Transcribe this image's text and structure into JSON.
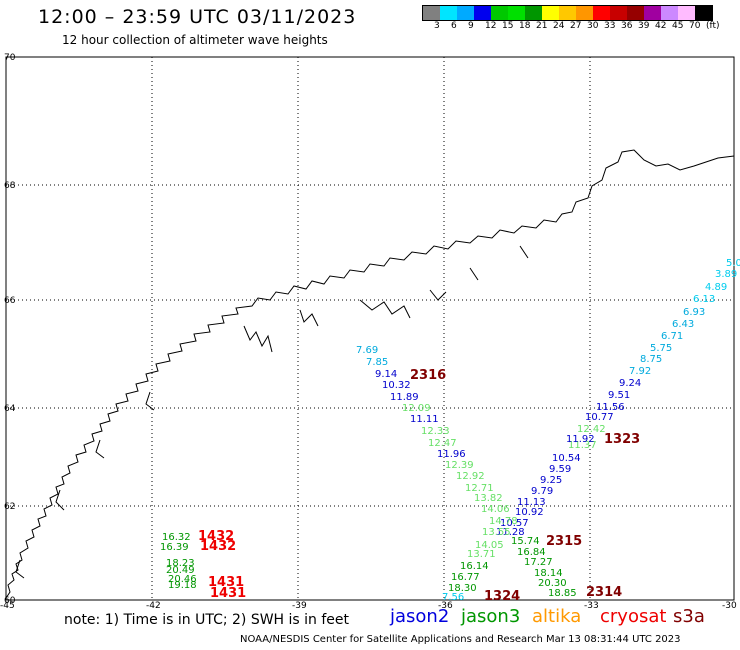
{
  "header": {
    "title": "12:00 – 23:59 UTC 03/11/2023",
    "subtitle": "12 hour collection of altimeter wave heights"
  },
  "colorbar": {
    "labels": [
      "3",
      "6",
      "9",
      "12",
      "15",
      "18",
      "21",
      "24",
      "27",
      "30",
      "33",
      "36",
      "39",
      "42",
      "45",
      "70",
      "(ft)"
    ],
    "colors": [
      "#808080",
      "#00e5ff",
      "#00aaff",
      "#0000ee",
      "#00c800",
      "#00e000",
      "#009600",
      "#ffff00",
      "#ffc800",
      "#ff9600",
      "#ff0000",
      "#c80000",
      "#960000",
      "#a000a0",
      "#cc88ff",
      "#ffbbff",
      "#000000"
    ]
  },
  "map": {
    "lon_ticks": [
      "-45",
      "-42",
      "-39",
      "-36",
      "-33",
      "-30"
    ],
    "lat_ticks": [
      "70",
      "68",
      "66",
      "64",
      "62",
      "60"
    ],
    "observations": [
      {
        "v": "5.0",
        "c": "#00ccee"
      },
      {
        "v": "3.89",
        "c": "#00ccee"
      },
      {
        "v": "4.89",
        "c": "#00ccee"
      },
      {
        "v": "6.13",
        "c": "#00ccee"
      },
      {
        "v": "6.93",
        "c": "#00aadd"
      },
      {
        "v": "6.43",
        "c": "#00aadd"
      },
      {
        "v": "6.71",
        "c": "#00aadd"
      },
      {
        "v": "5.75",
        "c": "#00aadd"
      },
      {
        "v": "8.75",
        "c": "#00aadd"
      },
      {
        "v": "7.92",
        "c": "#00aadd"
      },
      {
        "v": "9.24",
        "c": "#0000cc"
      },
      {
        "v": "9.51",
        "c": "#0000cc"
      },
      {
        "v": "11.56",
        "c": "#0000cc"
      },
      {
        "v": "10.77",
        "c": "#0000cc"
      },
      {
        "v": "12.42",
        "c": "#66e066"
      },
      {
        "v": "11.37",
        "c": "#66e066"
      },
      {
        "v": "11.92",
        "c": "#0000cc"
      },
      {
        "v": "10.54",
        "c": "#0000cc"
      },
      {
        "v": "9.59",
        "c": "#0000cc"
      },
      {
        "v": "9.25",
        "c": "#0000cc"
      },
      {
        "v": "9.79",
        "c": "#0000cc"
      },
      {
        "v": "11.13",
        "c": "#0000cc"
      },
      {
        "v": "10.92",
        "c": "#0000cc"
      },
      {
        "v": "10.57",
        "c": "#0000cc"
      },
      {
        "v": "11.28",
        "c": "#0000cc"
      },
      {
        "v": "15.74",
        "c": "#009600"
      },
      {
        "v": "16.84",
        "c": "#009600"
      },
      {
        "v": "17.27",
        "c": "#009600"
      },
      {
        "v": "18.14",
        "c": "#009600"
      },
      {
        "v": "20.30",
        "c": "#009600"
      },
      {
        "v": "18.85",
        "c": "#009600"
      },
      {
        "v": "7.69",
        "c": "#00aadd"
      },
      {
        "v": "7.85",
        "c": "#00aadd"
      },
      {
        "v": "9.14",
        "c": "#0000cc"
      },
      {
        "v": "10.32",
        "c": "#0000cc"
      },
      {
        "v": "11.89",
        "c": "#0000cc"
      },
      {
        "v": "12.09",
        "c": "#66e066"
      },
      {
        "v": "11.11",
        "c": "#0000cc"
      },
      {
        "v": "12.33",
        "c": "#66e066"
      },
      {
        "v": "12.47",
        "c": "#66e066"
      },
      {
        "v": "11.96",
        "c": "#0000cc"
      },
      {
        "v": "12.39",
        "c": "#66e066"
      },
      {
        "v": "12.92",
        "c": "#66e066"
      },
      {
        "v": "12.71",
        "c": "#66e066"
      },
      {
        "v": "13.82",
        "c": "#66e066"
      },
      {
        "v": "14.06",
        "c": "#66e066"
      },
      {
        "v": "14.78",
        "c": "#66e066"
      },
      {
        "v": "13.55",
        "c": "#66e066"
      },
      {
        "v": "14.05",
        "c": "#66e066"
      },
      {
        "v": "13.71",
        "c": "#66e066"
      },
      {
        "v": "16.14",
        "c": "#009600"
      },
      {
        "v": "16.77",
        "c": "#009600"
      },
      {
        "v": "18.30",
        "c": "#009600"
      },
      {
        "v": "7.56",
        "c": "#00ccee"
      },
      {
        "v": "16.32",
        "c": "#009600"
      },
      {
        "v": "16.39",
        "c": "#009600"
      },
      {
        "v": "18.23",
        "c": "#009600"
      },
      {
        "v": "20.49",
        "c": "#009600"
      },
      {
        "v": "20.46",
        "c": "#009600"
      },
      {
        "v": "19.18",
        "c": "#009600"
      }
    ],
    "pass_times": [
      {
        "t": "2316",
        "c": "#800000"
      },
      {
        "t": "1323",
        "c": "#800000"
      },
      {
        "t": "2315",
        "c": "#800000"
      },
      {
        "t": "2314",
        "c": "#800000"
      },
      {
        "t": "1324",
        "c": "#800000"
      },
      {
        "t": "1432",
        "c": "#ee0000"
      },
      {
        "t": "1432",
        "c": "#ee0000"
      },
      {
        "t": "1431",
        "c": "#ee0000"
      },
      {
        "t": "1431",
        "c": "#ee0000"
      }
    ]
  },
  "footer": {
    "note": "note: 1) Time is in UTC; 2) SWH is in feet",
    "legend": [
      {
        "name": "jason2",
        "color": "#0000dd"
      },
      {
        "name": "jason3",
        "color": "#009600"
      },
      {
        "name": "altika",
        "color": "#ff9900"
      },
      {
        "name": "cryosat",
        "color": "#ee0000"
      },
      {
        "name": "s3a",
        "color": "#800000"
      }
    ],
    "credit": "NOAA/NESDIS Center for Satellite Applications and Research    Mar 13 08:31:44 UTC 2023"
  }
}
